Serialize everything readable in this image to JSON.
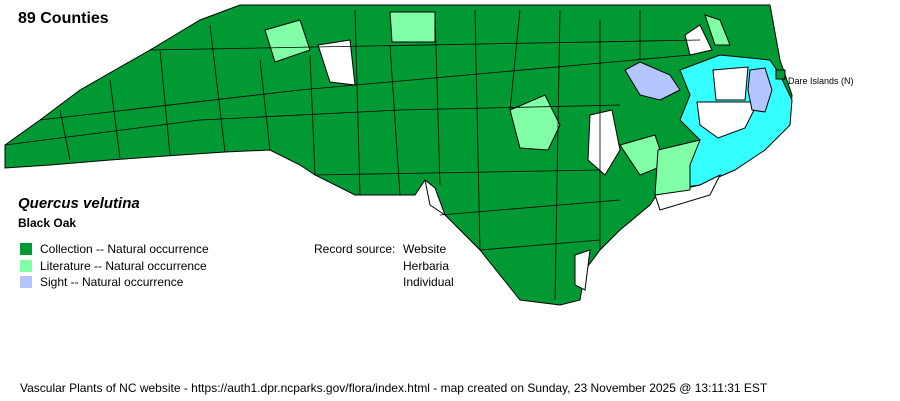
{
  "header": {
    "county_count": "89 Counties"
  },
  "species": {
    "scientific_name": "Quercus velutina",
    "common_name": "Black Oak"
  },
  "legend": [
    {
      "label": "Collection -- Natural occurrence",
      "color": "#009933"
    },
    {
      "label": "Literature -- Natural occurrence",
      "color": "#80ffa6"
    },
    {
      "label": "Sight -- Natural occurrence",
      "color": "#b3c6ff"
    }
  ],
  "record_source": {
    "label": "Record source:",
    "values": [
      "Website",
      "Herbaria",
      "Individual"
    ]
  },
  "map": {
    "water_color": "#33ffff",
    "absent_color": "#ffffff",
    "annotation": "Dare Islands (N)"
  },
  "footer": "Vascular Plants of NC website - https://auth1.dpr.ncparks.gov/flora/index.html - map created on Sunday, 23 November 2025 @ 13:11:31 EST"
}
